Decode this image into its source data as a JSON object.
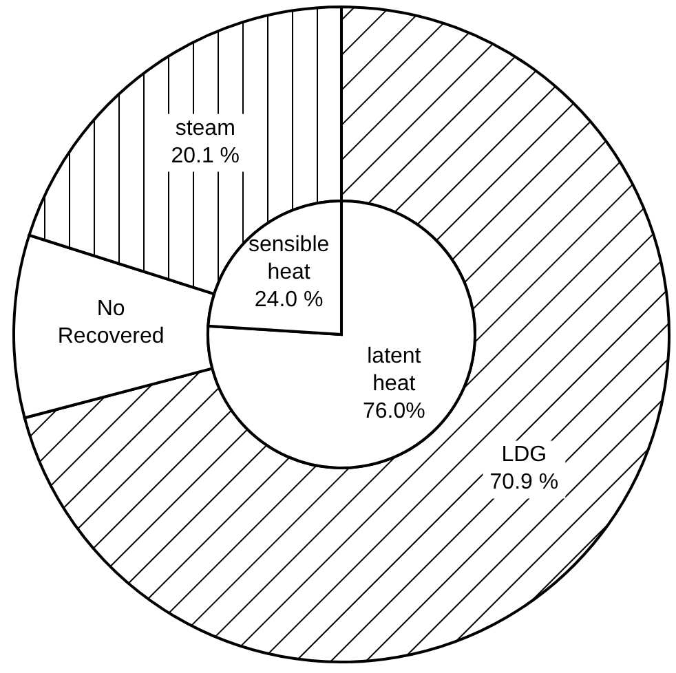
{
  "chart_data": [
    {
      "type": "donut",
      "categories": [
        "LDG",
        "No\nRecovered",
        "steam"
      ],
      "values": [
        70.9,
        9.0,
        20.1
      ],
      "colors": [
        "#000000",
        "#ffffff",
        "#000000"
      ],
      "value_labels": [
        "70.9 %",
        null,
        "20.1 %"
      ]
    },
    {
      "type": "pie",
      "categories": [
        "latent\nheat",
        "sensible\nheat"
      ],
      "values": [
        76.0,
        24.0
      ],
      "colors": [
        "#ffffff",
        "#ffffff"
      ],
      "value_labels": [
        "76.0%",
        "24.0 %"
      ]
    }
  ]
}
